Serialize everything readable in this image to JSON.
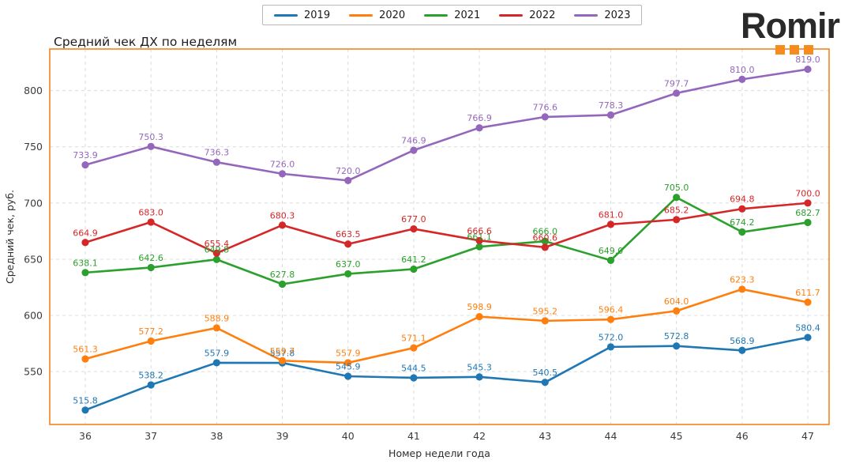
{
  "logo": {
    "text": "Romir",
    "accent_color": "#f68b1e",
    "text_color": "#2b2a2a"
  },
  "chart_data": {
    "type": "line",
    "title": "Средний чек ДХ по неделям",
    "xlabel": "Номер недели года",
    "ylabel": "Средний чек, руб.",
    "x": [
      36,
      37,
      38,
      39,
      40,
      41,
      42,
      43,
      44,
      45,
      46,
      47
    ],
    "series": [
      {
        "name": "2019",
        "color": "#1f77b4",
        "values": [
          515.8,
          538.2,
          557.9,
          557.8,
          545.9,
          544.5,
          545.3,
          540.5,
          572.0,
          572.8,
          568.9,
          580.4
        ]
      },
      {
        "name": "2020",
        "color": "#ff7f0e",
        "values": [
          561.3,
          577.2,
          588.9,
          559.7,
          557.9,
          571.1,
          598.9,
          595.2,
          596.4,
          604.0,
          623.3,
          611.7
        ]
      },
      {
        "name": "2021",
        "color": "#2ca02c",
        "values": [
          638.1,
          642.6,
          649.8,
          627.8,
          637.0,
          641.2,
          661.1,
          666.0,
          649.0,
          705.0,
          674.2,
          682.7
        ]
      },
      {
        "name": "2022",
        "color": "#d62728",
        "values": [
          664.9,
          683.0,
          655.4,
          680.3,
          663.5,
          677.0,
          666.6,
          660.6,
          681.0,
          685.2,
          694.8,
          700.0
        ]
      },
      {
        "name": "2023",
        "color": "#9467bd",
        "values": [
          733.9,
          750.3,
          736.3,
          726.0,
          720.0,
          746.9,
          766.9,
          776.6,
          778.3,
          797.7,
          810.0,
          819.0
        ]
      }
    ],
    "yticks": [
      550,
      600,
      650,
      700,
      750,
      800
    ],
    "ylim": [
      503,
      837
    ],
    "grid": true,
    "legend_position": "top-center",
    "point_labels": true,
    "border_color": "#f58220",
    "grid_color": "#dcdcdc",
    "tick_label_color": "#3c3c3c"
  }
}
